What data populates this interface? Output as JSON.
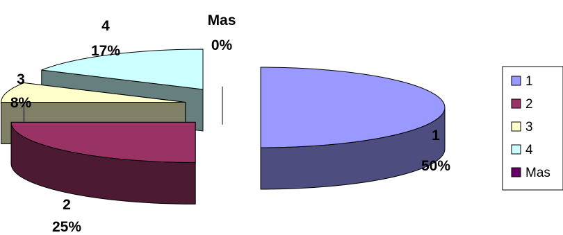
{
  "chart_data": {
    "type": "pie",
    "style": "3d-exploded",
    "categories": [
      "1",
      "2",
      "3",
      "4",
      "Mas"
    ],
    "values": [
      50,
      25,
      8,
      17,
      0
    ],
    "labels": [
      {
        "name": "1",
        "percent": "50%"
      },
      {
        "name": "2",
        "percent": "25%"
      },
      {
        "name": "3",
        "percent": "8%"
      },
      {
        "name": "4",
        "percent": "17%"
      },
      {
        "name": "Mas",
        "percent": "0%"
      }
    ],
    "colors": {
      "1": {
        "top": "#9999FF",
        "side": "#4D4D80"
      },
      "2": {
        "top": "#993366",
        "side": "#4D1A33"
      },
      "3": {
        "top": "#FFFFCC",
        "side": "#808066"
      },
      "4": {
        "top": "#CCFFFF",
        "side": "#668080"
      },
      "Mas": {
        "top": "#660066",
        "side": "#330033"
      }
    },
    "legend": {
      "position": "right",
      "entries": [
        "1",
        "2",
        "3",
        "4",
        "Mas"
      ]
    }
  }
}
